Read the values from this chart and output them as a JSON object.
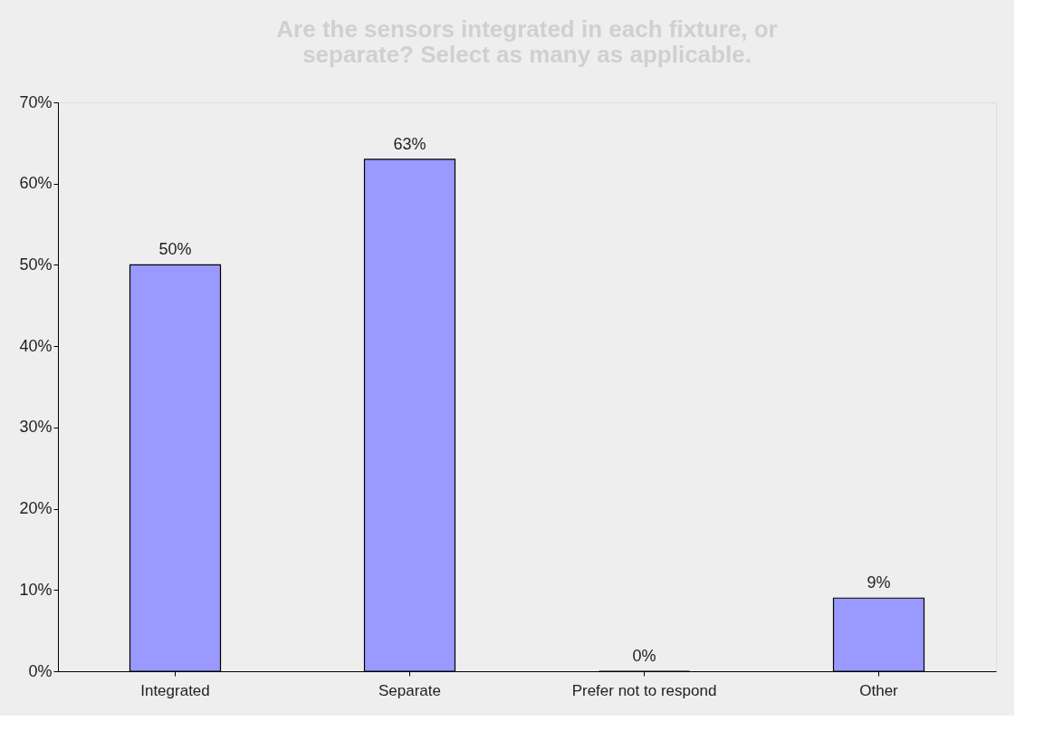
{
  "chart_data": {
    "type": "bar",
    "title": [
      "Are the sensors integrated in each fixture, or",
      "separate? Select as many as applicable."
    ],
    "categories": [
      "Integrated",
      "Separate",
      "Prefer not to respond",
      "Other"
    ],
    "values": [
      50,
      63,
      0,
      9
    ],
    "value_labels": [
      "50%",
      "63%",
      "0%",
      "9%"
    ],
    "color": "#9999ff",
    "ylim": [
      0,
      70
    ],
    "yticks": [
      {
        "value": 0,
        "label": "0%"
      },
      {
        "value": 10,
        "label": "10%"
      },
      {
        "value": 20,
        "label": "20%"
      },
      {
        "value": 30,
        "label": "30%"
      },
      {
        "value": 40,
        "label": "40%"
      },
      {
        "value": 50,
        "label": "50%"
      },
      {
        "value": 60,
        "label": "60%"
      },
      {
        "value": 70,
        "label": "70%"
      }
    ],
    "grid": false
  }
}
